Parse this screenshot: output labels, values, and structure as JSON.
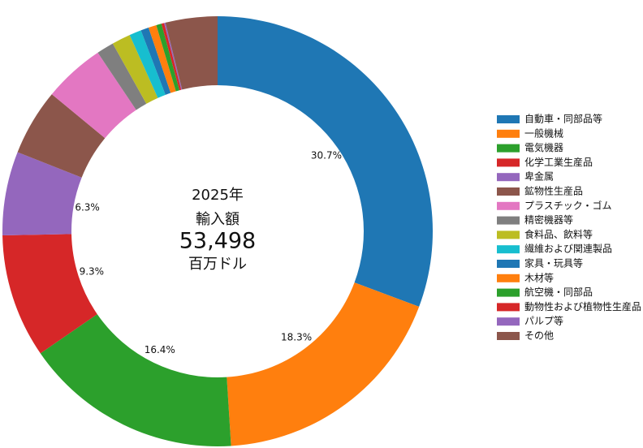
{
  "chart_data": {
    "type": "donut",
    "center_text": [
      "2025年",
      "輸入額",
      "53,498",
      "百万ドル"
    ],
    "categories": [
      "自動車・同部品等",
      "一般機械",
      "電気機器",
      "化学工業生産品",
      "卑金属",
      "鉱物性生産品",
      "プラスチック・ゴム",
      "精密機器等",
      "食料品、飲料等",
      "繊維および関連製品",
      "家具・玩具等",
      "木材等",
      "航空機・同部品",
      "動物性および植物性生産品",
      "パルプ等",
      "その他"
    ],
    "values": [
      30.7,
      18.3,
      16.4,
      9.3,
      6.3,
      5.0,
      4.6,
      1.3,
      1.4,
      0.9,
      0.6,
      0.6,
      0.4,
      0.2,
      0.1,
      3.9
    ],
    "value_labels": [
      "30.7%",
      "18.3%",
      "16.4%",
      "9.3%",
      "6.3%",
      null,
      null,
      null,
      null,
      null,
      null,
      null,
      null,
      null,
      null,
      null
    ],
    "colors": [
      "#1f77b4",
      "#ff7f0e",
      "#2ca02c",
      "#d62728",
      "#9467bd",
      "#8c564b",
      "#e377c2",
      "#7f7f7f",
      "#bcbd22",
      "#17becf",
      "#1f77b4",
      "#ff7f0e",
      "#2ca02c",
      "#d62728",
      "#9467bd",
      "#8c564b"
    ],
    "legend": "right"
  }
}
